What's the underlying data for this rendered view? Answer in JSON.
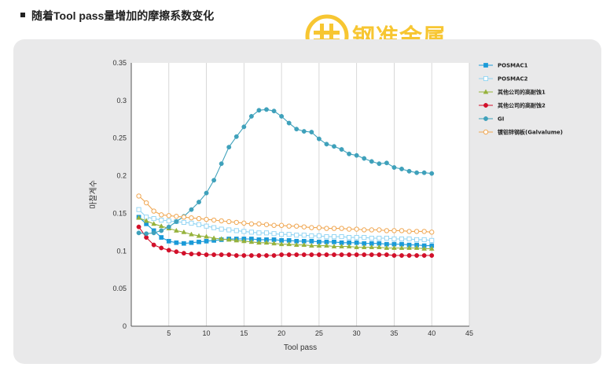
{
  "page": {
    "title": "随着Tool pass量增加的摩擦系数变化",
    "brand": "钢准金属"
  },
  "colors": {
    "background": "#ffffff",
    "panel": "#e9e9ea",
    "brand": "#f7c632"
  },
  "chart_data": {
    "type": "line",
    "xlabel": "Tool pass",
    "ylabel": "마찰계수",
    "xlim": [
      0,
      45
    ],
    "ylim": [
      0,
      0.35
    ],
    "xticks": [
      5,
      10,
      15,
      20,
      25,
      30,
      35,
      40,
      45
    ],
    "yticks": [
      0,
      0.05,
      0.1,
      0.15,
      0.2,
      0.25,
      0.3,
      0.35
    ],
    "grid": "vertical",
    "legend_position": "right",
    "series": [
      {
        "name": "POSMAC1",
        "color": "#1a9ad8",
        "marker": "square-filled",
        "x": [
          1,
          2,
          3,
          4,
          5,
          6,
          7,
          8,
          9,
          10,
          11,
          12,
          13,
          14,
          15,
          16,
          17,
          18,
          19,
          20,
          21,
          22,
          23,
          24,
          25,
          26,
          27,
          28,
          29,
          30,
          31,
          32,
          33,
          34,
          35,
          36,
          37,
          38,
          39,
          40
        ],
        "y": [
          0.145,
          0.136,
          0.127,
          0.118,
          0.113,
          0.111,
          0.11,
          0.111,
          0.112,
          0.113,
          0.114,
          0.115,
          0.116,
          0.116,
          0.116,
          0.116,
          0.115,
          0.115,
          0.115,
          0.114,
          0.114,
          0.113,
          0.113,
          0.113,
          0.112,
          0.112,
          0.112,
          0.111,
          0.111,
          0.111,
          0.11,
          0.11,
          0.11,
          0.109,
          0.109,
          0.109,
          0.108,
          0.108,
          0.107,
          0.107
        ]
      },
      {
        "name": "POSMAC2",
        "color": "#8ed3f3",
        "marker": "square-open",
        "x": [
          1,
          2,
          3,
          4,
          5,
          6,
          7,
          8,
          9,
          10,
          11,
          12,
          13,
          14,
          15,
          16,
          17,
          18,
          19,
          20,
          21,
          22,
          23,
          24,
          25,
          26,
          27,
          28,
          29,
          30,
          31,
          32,
          33,
          34,
          35,
          36,
          37,
          38,
          39,
          40
        ],
        "y": [
          0.155,
          0.145,
          0.143,
          0.141,
          0.14,
          0.139,
          0.138,
          0.137,
          0.135,
          0.133,
          0.131,
          0.129,
          0.128,
          0.127,
          0.126,
          0.125,
          0.124,
          0.124,
          0.123,
          0.122,
          0.122,
          0.121,
          0.121,
          0.12,
          0.12,
          0.119,
          0.119,
          0.119,
          0.118,
          0.118,
          0.118,
          0.117,
          0.117,
          0.117,
          0.116,
          0.116,
          0.116,
          0.115,
          0.115,
          0.114
        ]
      },
      {
        "name": "其他公司的高耐蚀1",
        "color": "#96b23c",
        "marker": "triangle-filled",
        "x": [
          1,
          2,
          3,
          4,
          5,
          6,
          7,
          8,
          9,
          10,
          11,
          12,
          13,
          14,
          15,
          16,
          17,
          18,
          19,
          20,
          21,
          22,
          23,
          24,
          25,
          26,
          27,
          28,
          29,
          30,
          31,
          32,
          33,
          34,
          35,
          36,
          37,
          38,
          39,
          40
        ],
        "y": [
          0.144,
          0.14,
          0.136,
          0.133,
          0.13,
          0.127,
          0.125,
          0.122,
          0.12,
          0.119,
          0.117,
          0.116,
          0.115,
          0.114,
          0.113,
          0.112,
          0.111,
          0.111,
          0.11,
          0.109,
          0.109,
          0.108,
          0.108,
          0.107,
          0.107,
          0.107,
          0.106,
          0.106,
          0.106,
          0.105,
          0.105,
          0.105,
          0.105,
          0.104,
          0.104,
          0.104,
          0.104,
          0.104,
          0.103,
          0.103
        ]
      },
      {
        "name": "其他公司的高耐蚀2",
        "color": "#d2102a",
        "marker": "circle-filled",
        "x": [
          1,
          2,
          3,
          4,
          5,
          6,
          7,
          8,
          9,
          10,
          11,
          12,
          13,
          14,
          15,
          16,
          17,
          18,
          19,
          20,
          21,
          22,
          23,
          24,
          25,
          26,
          27,
          28,
          29,
          30,
          31,
          32,
          33,
          34,
          35,
          36,
          37,
          38,
          39,
          40
        ],
        "y": [
          0.132,
          0.118,
          0.108,
          0.104,
          0.101,
          0.099,
          0.097,
          0.096,
          0.096,
          0.095,
          0.095,
          0.095,
          0.095,
          0.094,
          0.094,
          0.094,
          0.094,
          0.094,
          0.094,
          0.095,
          0.095,
          0.095,
          0.095,
          0.095,
          0.095,
          0.095,
          0.095,
          0.095,
          0.095,
          0.095,
          0.095,
          0.095,
          0.095,
          0.095,
          0.094,
          0.094,
          0.094,
          0.094,
          0.094,
          0.094
        ]
      },
      {
        "name": "GI",
        "color": "#3fa1bb",
        "marker": "circle-filled",
        "x": [
          1,
          2,
          3,
          4,
          5,
          6,
          7,
          8,
          9,
          10,
          11,
          12,
          13,
          14,
          15,
          16,
          17,
          18,
          19,
          20,
          21,
          22,
          23,
          24,
          25,
          26,
          27,
          28,
          29,
          30,
          31,
          32,
          33,
          34,
          35,
          36,
          37,
          38,
          39,
          40
        ],
        "y": [
          0.124,
          0.123,
          0.124,
          0.127,
          0.132,
          0.139,
          0.146,
          0.155,
          0.165,
          0.177,
          0.194,
          0.216,
          0.238,
          0.252,
          0.265,
          0.279,
          0.287,
          0.288,
          0.286,
          0.279,
          0.27,
          0.262,
          0.259,
          0.258,
          0.249,
          0.242,
          0.239,
          0.235,
          0.229,
          0.227,
          0.223,
          0.219,
          0.216,
          0.217,
          0.211,
          0.209,
          0.206,
          0.204,
          0.204,
          0.203
        ]
      },
      {
        "name": "镀铝锌钢板(Galvalume)",
        "color": "#f0a752",
        "marker": "circle-open",
        "x": [
          1,
          2,
          3,
          4,
          5,
          6,
          7,
          8,
          9,
          10,
          11,
          12,
          13,
          14,
          15,
          16,
          17,
          18,
          19,
          20,
          21,
          22,
          23,
          24,
          25,
          26,
          27,
          28,
          29,
          30,
          31,
          32,
          33,
          34,
          35,
          36,
          37,
          38,
          39,
          40
        ],
        "y": [
          0.173,
          0.164,
          0.153,
          0.148,
          0.147,
          0.146,
          0.145,
          0.144,
          0.143,
          0.142,
          0.141,
          0.14,
          0.139,
          0.138,
          0.137,
          0.136,
          0.136,
          0.135,
          0.134,
          0.134,
          0.133,
          0.133,
          0.132,
          0.131,
          0.131,
          0.13,
          0.13,
          0.13,
          0.129,
          0.129,
          0.128,
          0.128,
          0.128,
          0.127,
          0.127,
          0.127,
          0.126,
          0.126,
          0.126,
          0.125
        ]
      }
    ]
  }
}
